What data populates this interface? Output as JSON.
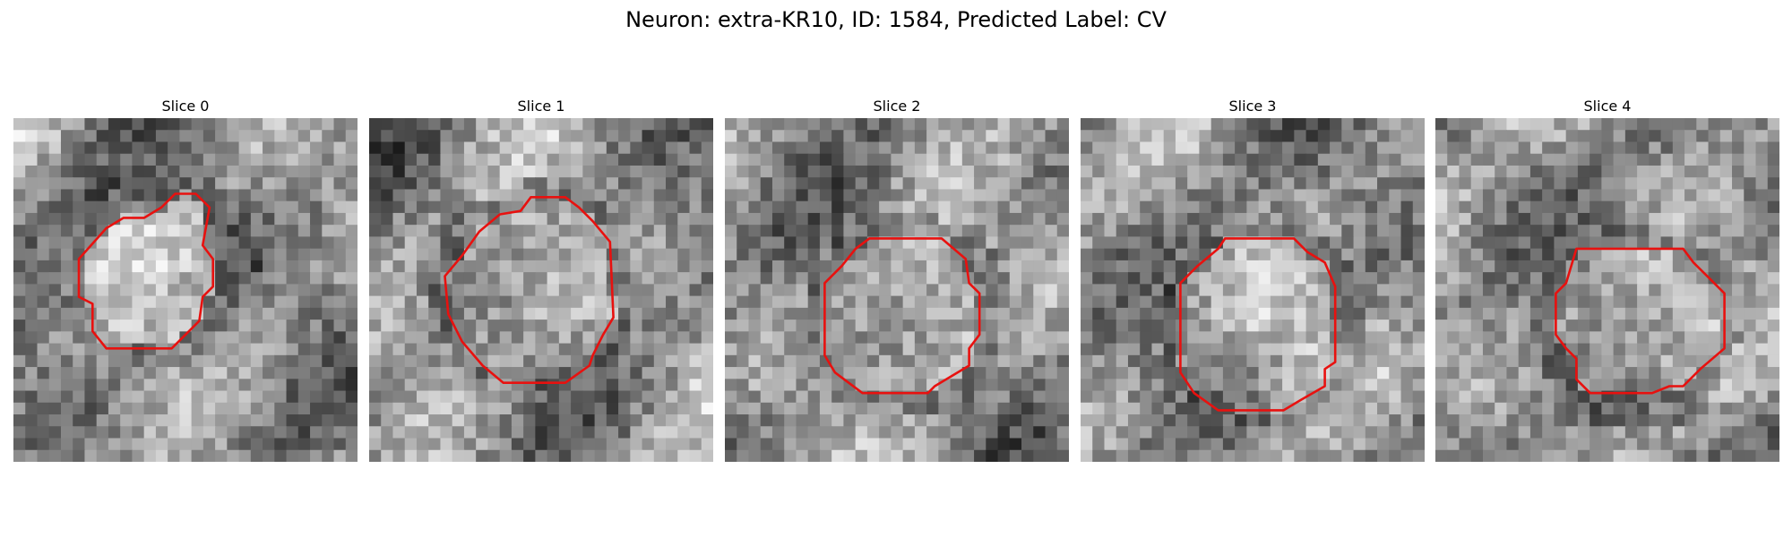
{
  "figure": {
    "title": "Neuron: extra-KR10, ID: 1584, Predicted Label: CV",
    "contour_color": "#e8110f",
    "colormap": "gray"
  },
  "panels": [
    {
      "title": "Slice 0",
      "seed": 11,
      "contour": [
        [
          0.47,
          0.22
        ],
        [
          0.53,
          0.22
        ],
        [
          0.57,
          0.26
        ],
        [
          0.55,
          0.37
        ],
        [
          0.58,
          0.41
        ],
        [
          0.58,
          0.49
        ],
        [
          0.55,
          0.52
        ],
        [
          0.54,
          0.59
        ],
        [
          0.46,
          0.67
        ],
        [
          0.27,
          0.67
        ],
        [
          0.23,
          0.62
        ],
        [
          0.23,
          0.54
        ],
        [
          0.19,
          0.52
        ],
        [
          0.19,
          0.41
        ],
        [
          0.27,
          0.32
        ],
        [
          0.32,
          0.29
        ],
        [
          0.38,
          0.29
        ],
        [
          0.43,
          0.26
        ]
      ]
    },
    {
      "title": "Slice 1",
      "seed": 23,
      "contour": [
        [
          0.47,
          0.23
        ],
        [
          0.57,
          0.23
        ],
        [
          0.61,
          0.26
        ],
        [
          0.65,
          0.3
        ],
        [
          0.7,
          0.36
        ],
        [
          0.71,
          0.58
        ],
        [
          0.68,
          0.63
        ],
        [
          0.65,
          0.69
        ],
        [
          0.64,
          0.72
        ],
        [
          0.57,
          0.77
        ],
        [
          0.39,
          0.77
        ],
        [
          0.33,
          0.72
        ],
        [
          0.27,
          0.65
        ],
        [
          0.23,
          0.57
        ],
        [
          0.22,
          0.46
        ],
        [
          0.27,
          0.4
        ],
        [
          0.32,
          0.33
        ],
        [
          0.38,
          0.28
        ],
        [
          0.44,
          0.27
        ]
      ]
    },
    {
      "title": "Slice 2",
      "seed": 37,
      "contour": [
        [
          0.42,
          0.35
        ],
        [
          0.63,
          0.35
        ],
        [
          0.7,
          0.41
        ],
        [
          0.71,
          0.48
        ],
        [
          0.74,
          0.51
        ],
        [
          0.74,
          0.63
        ],
        [
          0.71,
          0.67
        ],
        [
          0.71,
          0.72
        ],
        [
          0.61,
          0.78
        ],
        [
          0.59,
          0.8
        ],
        [
          0.4,
          0.8
        ],
        [
          0.32,
          0.74
        ],
        [
          0.29,
          0.69
        ],
        [
          0.29,
          0.48
        ],
        [
          0.34,
          0.43
        ],
        [
          0.38,
          0.38
        ]
      ]
    },
    {
      "title": "Slice 3",
      "seed": 53,
      "contour": [
        [
          0.42,
          0.35
        ],
        [
          0.62,
          0.35
        ],
        [
          0.66,
          0.39
        ],
        [
          0.71,
          0.42
        ],
        [
          0.74,
          0.49
        ],
        [
          0.74,
          0.71
        ],
        [
          0.71,
          0.73
        ],
        [
          0.71,
          0.78
        ],
        [
          0.64,
          0.82
        ],
        [
          0.59,
          0.85
        ],
        [
          0.4,
          0.85
        ],
        [
          0.33,
          0.8
        ],
        [
          0.29,
          0.74
        ],
        [
          0.29,
          0.48
        ],
        [
          0.34,
          0.43
        ],
        [
          0.4,
          0.38
        ]
      ]
    },
    {
      "title": "Slice 4",
      "seed": 71,
      "contour": [
        [
          0.41,
          0.38
        ],
        [
          0.72,
          0.38
        ],
        [
          0.75,
          0.42
        ],
        [
          0.79,
          0.46
        ],
        [
          0.84,
          0.51
        ],
        [
          0.84,
          0.67
        ],
        [
          0.77,
          0.73
        ],
        [
          0.72,
          0.78
        ],
        [
          0.68,
          0.78
        ],
        [
          0.63,
          0.8
        ],
        [
          0.45,
          0.8
        ],
        [
          0.41,
          0.76
        ],
        [
          0.41,
          0.7
        ],
        [
          0.38,
          0.67
        ],
        [
          0.35,
          0.63
        ],
        [
          0.35,
          0.51
        ],
        [
          0.38,
          0.48
        ]
      ]
    }
  ]
}
